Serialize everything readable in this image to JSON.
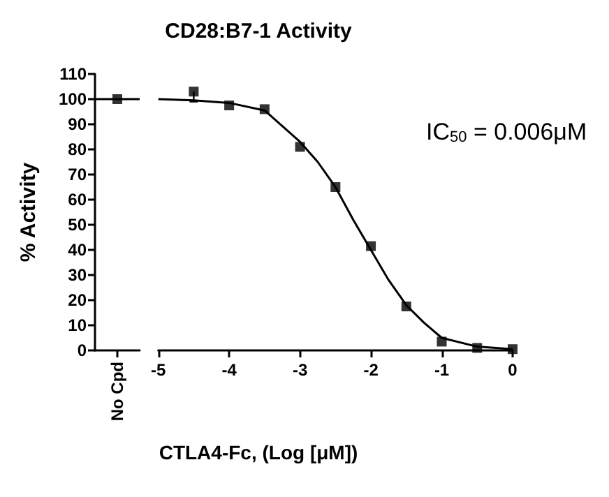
{
  "chart_data": [
    {
      "type": "scatter",
      "categories": [
        "No Cpd"
      ],
      "ylabel": "% Activity",
      "ylim": [
        0,
        110
      ],
      "yticks": [
        0,
        10,
        20,
        30,
        40,
        50,
        60,
        70,
        80,
        90,
        100,
        110
      ],
      "marker": "square",
      "grid": false,
      "series": [
        {
          "color": "#000000",
          "values": [
            100
          ]
        }
      ],
      "ref_lines": [
        {
          "axis": "y",
          "value": 100,
          "color": "#000000"
        }
      ]
    },
    {
      "type": "scatter",
      "title": "CD28:B7-1 Activity",
      "xlabel": "CTLA4-Fc, (Log [μM])",
      "xlim": [
        -5,
        0
      ],
      "xticks": [
        -5,
        -4,
        -3,
        -2,
        -1,
        0
      ],
      "ylim": [
        0,
        110
      ],
      "tick_labels": "x",
      "marker": "square",
      "grid": false,
      "annotations": [
        "IC$_{50}$ = 0.006μM"
      ],
      "series": [
        {
          "color": "#000000",
          "x": [
            -4.5,
            -4,
            -3.5,
            -3,
            -2.5,
            -2,
            -1.5,
            -1,
            -0.5,
            0
          ],
          "values": [
            103,
            97.5,
            96,
            81,
            65,
            41.5,
            17.5,
            3.5,
            1,
            0.5
          ],
          "errors": [
            [
              99,
              103
            ],
            null,
            null,
            null,
            null,
            null,
            null,
            null,
            null,
            null
          ]
        },
        {
          "type": "line",
          "marker": "none",
          "color": "#000000",
          "x": [
            -5,
            -4.5,
            -4,
            -3.5,
            -3,
            -2.75,
            -2.5,
            -2.25,
            -2,
            -1.75,
            -1.5,
            -1.25,
            -1,
            -0.5,
            0
          ],
          "values": [
            100,
            99.5,
            98.5,
            95.5,
            83,
            75,
            65,
            52,
            40,
            28,
            18,
            11,
            5,
            1.5,
            0.5
          ]
        }
      ]
    }
  ]
}
